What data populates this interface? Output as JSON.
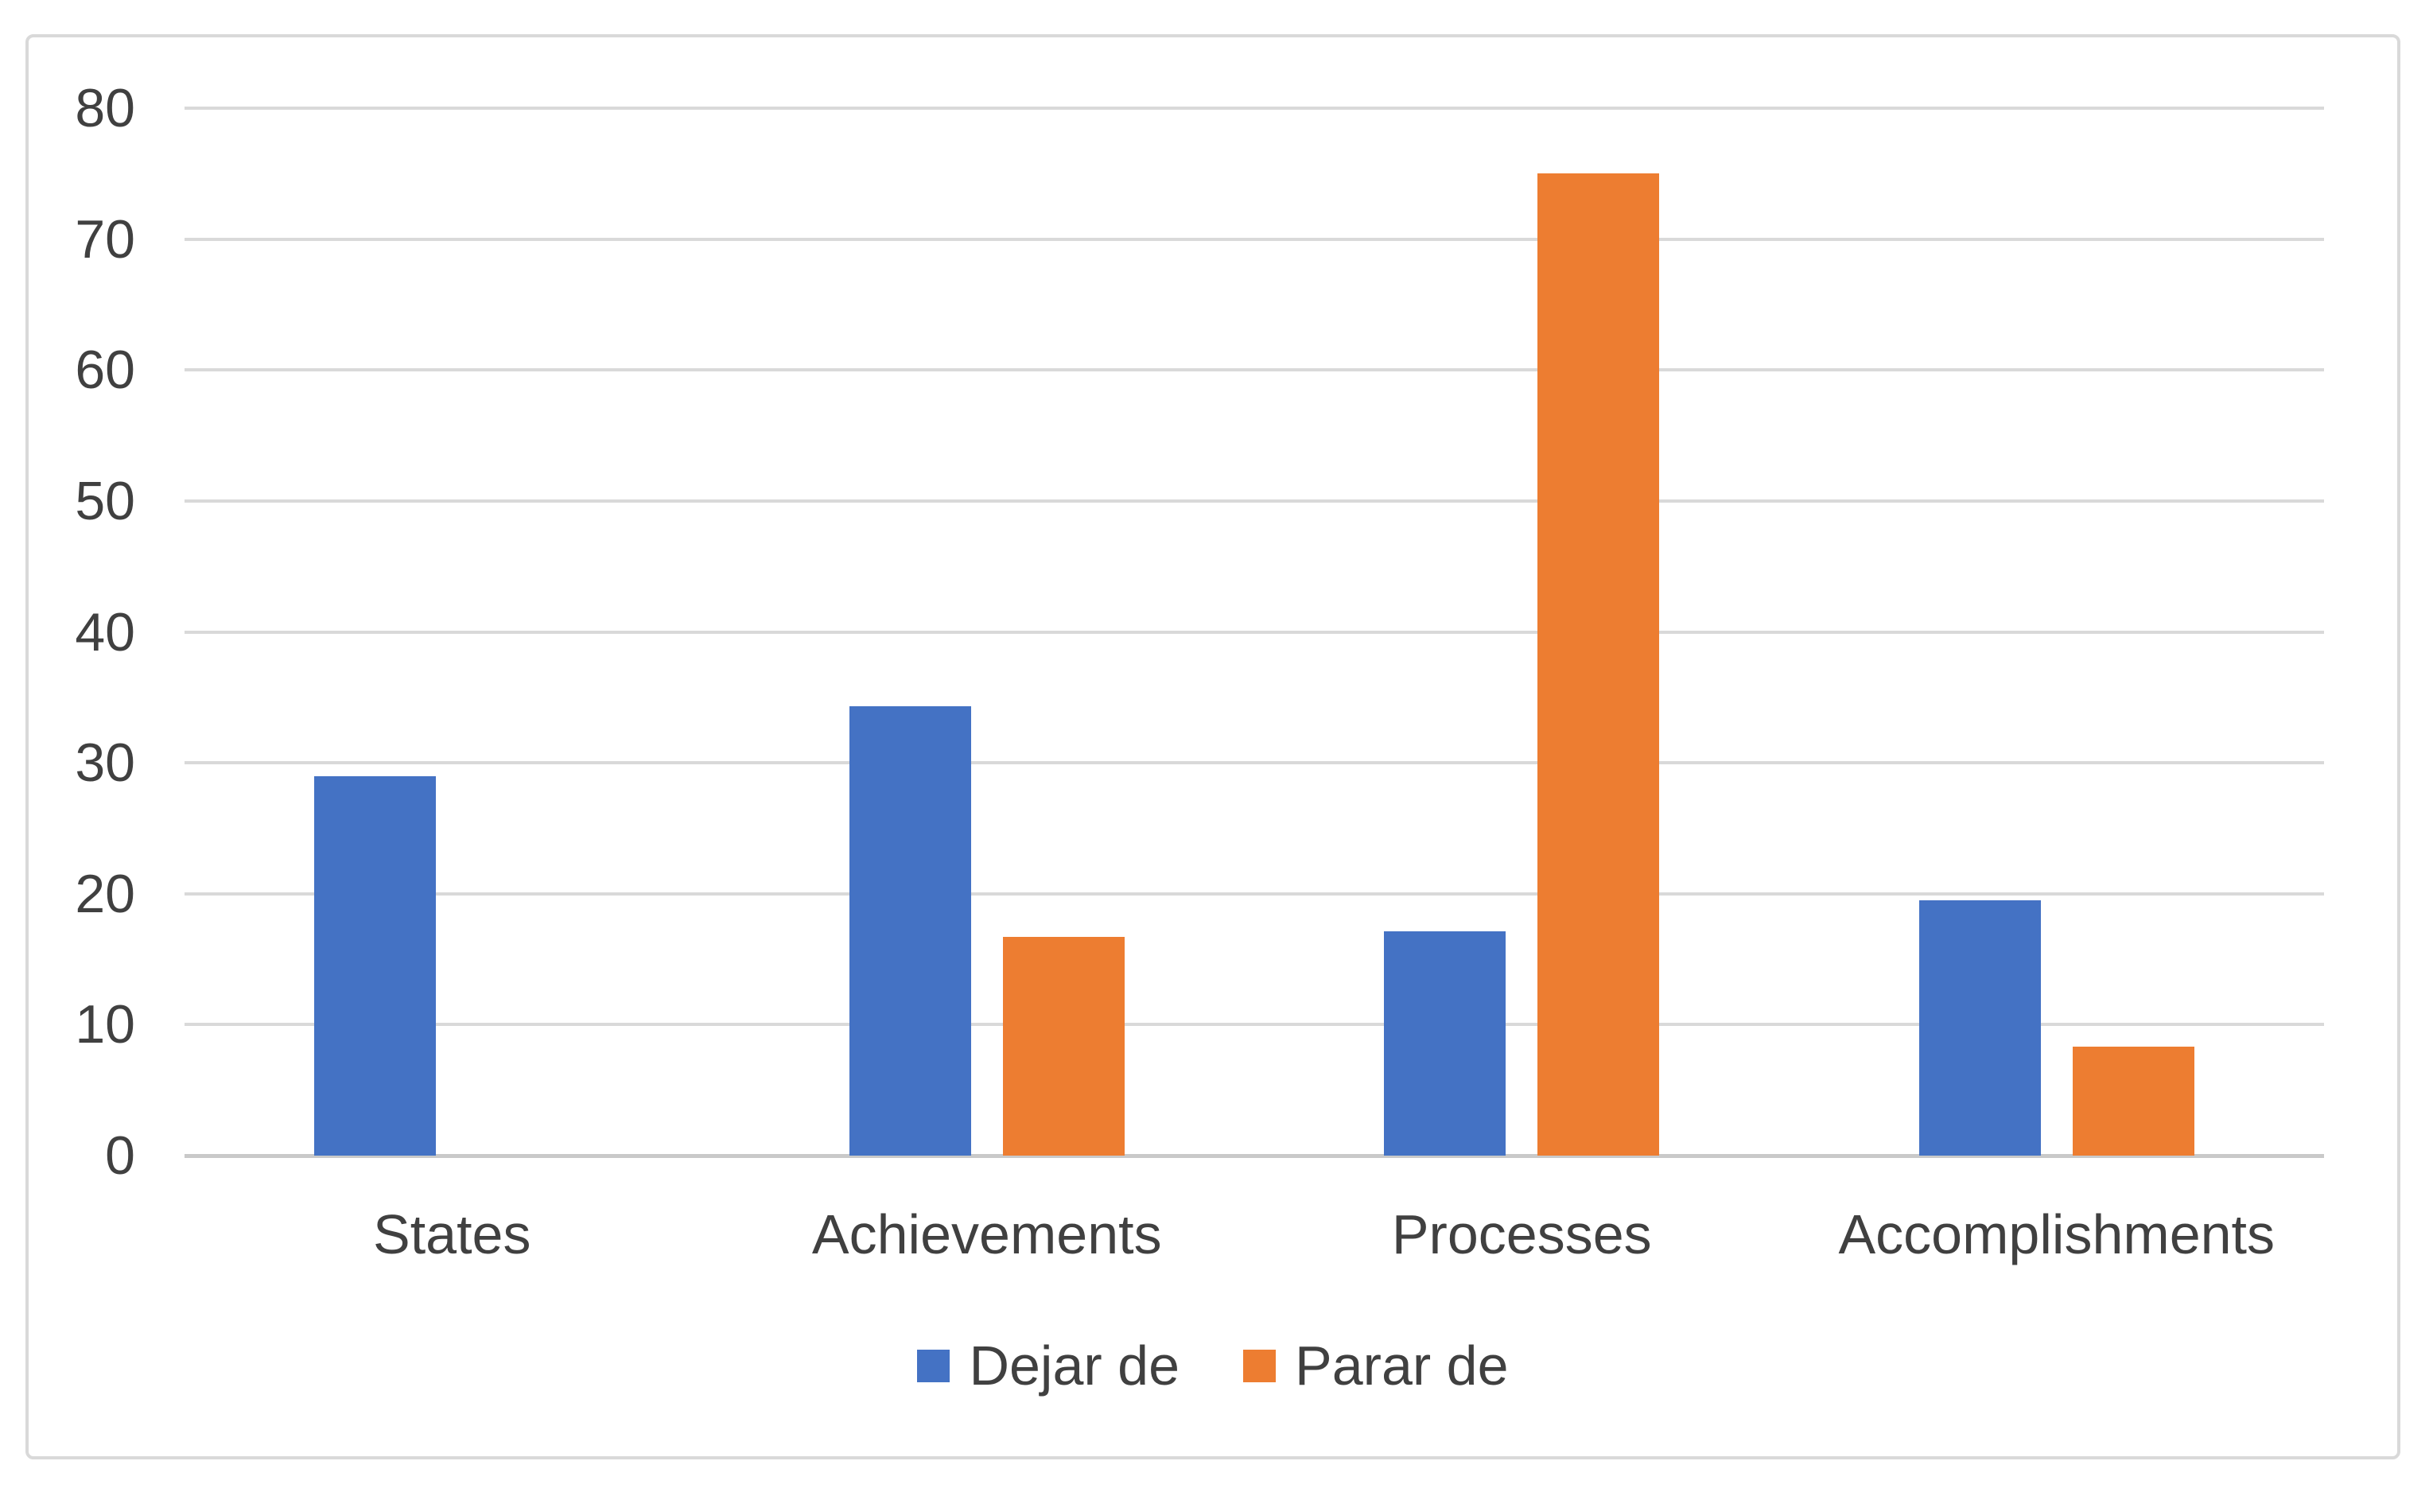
{
  "chart_data": {
    "type": "bar",
    "title": "",
    "xlabel": "",
    "ylabel": "",
    "categories": [
      "States",
      "Achievements",
      "Processes",
      "Accomplishments"
    ],
    "series": [
      {
        "name": "Dejar de",
        "color": "#4472C4",
        "values": [
          29,
          34.3,
          17.1,
          19.5
        ]
      },
      {
        "name": "Parar de",
        "color": "#ED7D31",
        "values": [
          0,
          16.7,
          75,
          8.3
        ]
      }
    ],
    "ylim": [
      0,
      80
    ],
    "ytick_step": 10,
    "ytick_labels": [
      "0",
      "10",
      "20",
      "30",
      "40",
      "50",
      "60",
      "70",
      "80"
    ],
    "grid": true,
    "legend_position": "bottom",
    "colors": {
      "gridline": "#D9D9D9",
      "axis_line": "#C9C9C9",
      "label_text": "#404040",
      "frame_border": "#D9D9D9",
      "background": "#FFFFFF"
    }
  }
}
